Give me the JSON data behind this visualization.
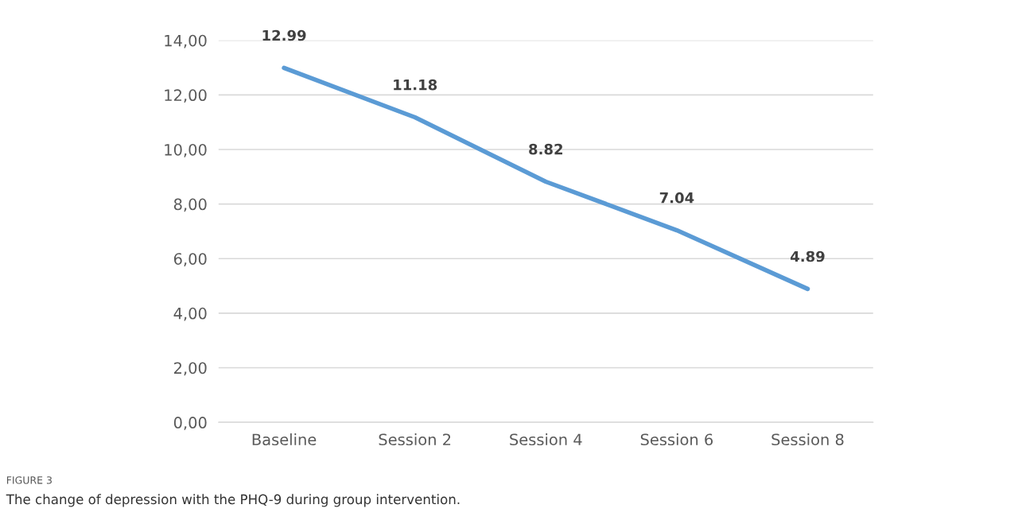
{
  "chart_data": {
    "type": "line",
    "categories": [
      "Baseline",
      "Session 2",
      "Session 4",
      "Session 6",
      "Session 8"
    ],
    "series": [
      {
        "color": "#5b9bd5",
        "values": [
          12.99,
          11.18,
          8.82,
          7.04,
          4.89
        ]
      }
    ],
    "data_labels": true,
    "ylim": [
      0,
      14
    ],
    "yticks": [
      {
        "value": 0,
        "label": "0,00"
      },
      {
        "value": 2,
        "label": "2,00"
      },
      {
        "value": 4,
        "label": "4,00"
      },
      {
        "value": 6,
        "label": "6,00"
      },
      {
        "value": 8,
        "label": "8,00"
      },
      {
        "value": 10,
        "label": "10,00"
      },
      {
        "value": 12,
        "label": "12,00"
      },
      {
        "value": 14,
        "label": "14,00"
      }
    ],
    "grid": "y",
    "marker": "none",
    "line_style": "solid",
    "annotations": [
      "FIGURE 3",
      "The change of depression with the PHQ-9 during group intervention."
    ]
  }
}
